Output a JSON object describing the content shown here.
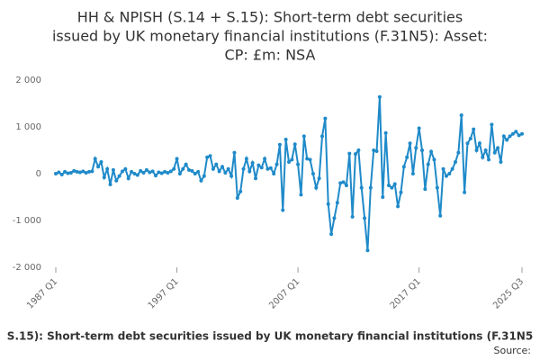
{
  "chart_data": {
    "type": "line",
    "title": [
      "HH & NPISH (S.14 + S.15): Short-term debt securities",
      "issued by UK monetary financial institutions (F.31N5): Asset:",
      "CP: £m: NSA"
    ],
    "categories": [
      "1987 Q1",
      null,
      null,
      null,
      null,
      null,
      null,
      null,
      null,
      null,
      null,
      null,
      null,
      null,
      null,
      null,
      null,
      null,
      null,
      null,
      null,
      null,
      null,
      null,
      null,
      null,
      null,
      null,
      null,
      null,
      null,
      null,
      null,
      null,
      null,
      null,
      null,
      null,
      null,
      null,
      "1997 Q1",
      null,
      null,
      null,
      null,
      null,
      null,
      null,
      null,
      null,
      null,
      null,
      null,
      null,
      null,
      null,
      null,
      null,
      null,
      null,
      null,
      null,
      null,
      null,
      null,
      null,
      null,
      null,
      null,
      null,
      null,
      null,
      null,
      null,
      null,
      null,
      null,
      null,
      null,
      null,
      "2007 Q1",
      null,
      null,
      null,
      null,
      null,
      null,
      null,
      null,
      null,
      null,
      null,
      null,
      null,
      null,
      null,
      null,
      null,
      null,
      null,
      null,
      null,
      null,
      null,
      null,
      null,
      null,
      null,
      null,
      null,
      null,
      null,
      null,
      null,
      null,
      null,
      null,
      null,
      null,
      null,
      "2017 Q1",
      null,
      null,
      null,
      null,
      null,
      null,
      null,
      null,
      null,
      null,
      null,
      null,
      null,
      null,
      null,
      null,
      null,
      null,
      null,
      null,
      null,
      null,
      null,
      null,
      null,
      null,
      null,
      null,
      null,
      null,
      null,
      null,
      null,
      "2025 Q3"
    ],
    "series": [
      {
        "name": "S.15): Short-term debt securities issued by UK monetary financial institutions (F.31N5",
        "color": "#1f8ac9",
        "values": [
          0,
          30,
          -20,
          40,
          10,
          20,
          60,
          40,
          30,
          50,
          20,
          40,
          50,
          320,
          150,
          250,
          -80,
          100,
          -230,
          80,
          -150,
          -50,
          50,
          100,
          -100,
          40,
          0,
          -30,
          60,
          20,
          80,
          30,
          50,
          -40,
          30,
          10,
          40,
          20,
          50,
          100,
          320,
          0,
          100,
          200,
          80,
          60,
          0,
          40,
          -150,
          -50,
          350,
          380,
          100,
          200,
          50,
          150,
          20,
          100,
          -50,
          450,
          -520,
          -380,
          100,
          320,
          50,
          230,
          -100,
          180,
          130,
          320,
          100,
          120,
          0,
          200,
          620,
          -780,
          730,
          250,
          300,
          630,
          200,
          -450,
          800,
          320,
          300,
          0,
          -300,
          -100,
          800,
          1180,
          -650,
          -1290,
          -950,
          -620,
          -200,
          -180,
          -250,
          430,
          -920,
          420,
          500,
          -300,
          -950,
          -1640,
          -300,
          500,
          480,
          1640,
          -500,
          870,
          -250,
          -300,
          -220,
          -700,
          -400,
          150,
          350,
          650,
          0,
          550,
          970,
          500,
          -330,
          200,
          470,
          300,
          -300,
          -900,
          100,
          -50,
          0,
          100,
          250,
          450,
          1250,
          -400,
          650,
          750,
          950,
          500,
          650,
          350,
          500,
          300,
          1050,
          450,
          550,
          250,
          800,
          720,
          800,
          850,
          900,
          820,
          850
        ]
      }
    ],
    "ylim": [
      -2000,
      2000
    ],
    "yticks": [
      {
        "value": -2000,
        "label": "-2 000"
      },
      {
        "value": -1000,
        "label": "-1 000"
      },
      0,
      {
        "value": 1000,
        "label": "1 000"
      },
      {
        "value": 2000,
        "label": "2 000"
      }
    ],
    "grid": false,
    "source": "Source:"
  }
}
